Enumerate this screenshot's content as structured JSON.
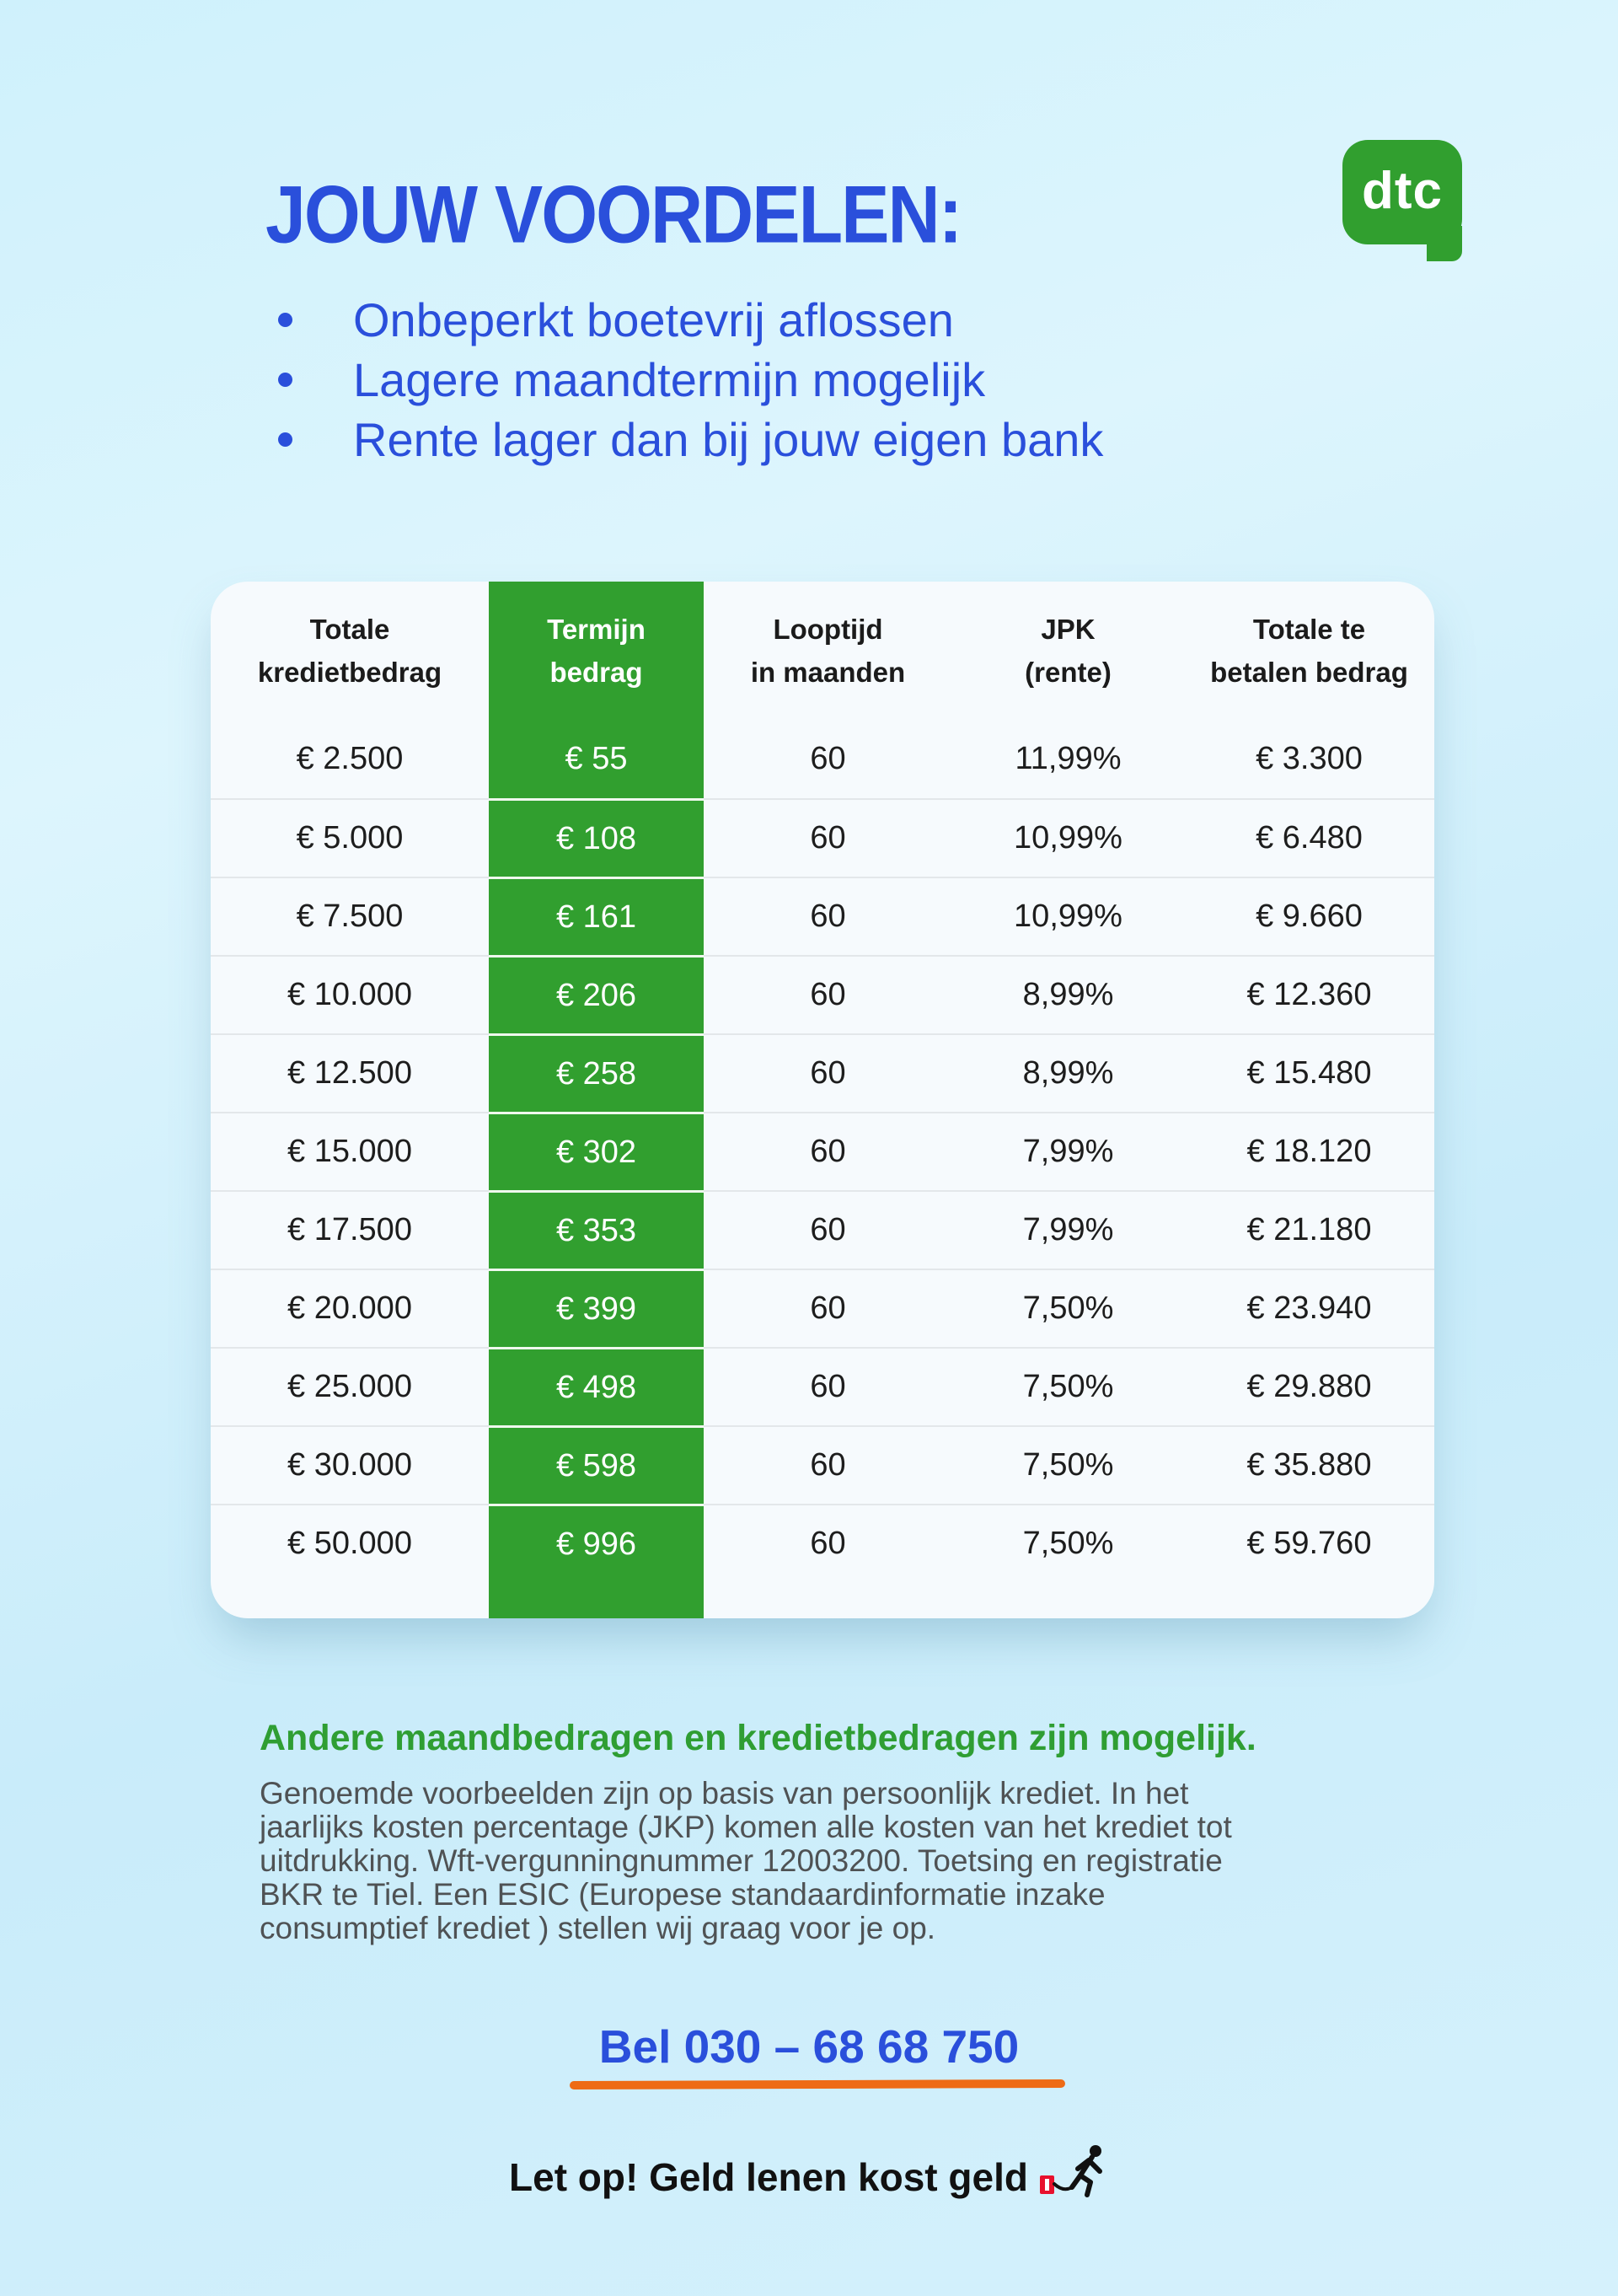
{
  "colors": {
    "accent_blue": "#2a4fdb",
    "brand_green": "#319f2f",
    "underline_orange": "#ee6b15",
    "warning_red": "#e8112d",
    "background_blue": "#cdeffb"
  },
  "header": {
    "title": "JOUW VOORDELEN:",
    "logo_text": "dtc",
    "bullets": [
      "Onbeperkt boetevrij aflossen",
      "Lagere maandtermijn mogelijk",
      "Rente lager dan bij jouw eigen bank"
    ]
  },
  "table": {
    "highlight_column_index": 1,
    "columns": [
      "Totale\nkredietbedrag",
      "Termijn\nbedrag",
      "Looptijd\nin maanden",
      "JPK\n(rente)",
      "Totale te\nbetalen bedrag"
    ],
    "rows": [
      [
        "€ 2.500",
        "€ 55",
        "60",
        "11,99%",
        "€ 3.300"
      ],
      [
        "€ 5.000",
        "€ 108",
        "60",
        "10,99%",
        "€ 6.480"
      ],
      [
        "€ 7.500",
        "€ 161",
        "60",
        "10,99%",
        "€ 9.660"
      ],
      [
        "€ 10.000",
        "€ 206",
        "60",
        "8,99%",
        "€ 12.360"
      ],
      [
        "€ 12.500",
        "€ 258",
        "60",
        "8,99%",
        "€ 15.480"
      ],
      [
        "€ 15.000",
        "€ 302",
        "60",
        "7,99%",
        "€ 18.120"
      ],
      [
        "€ 17.500",
        "€ 353",
        "60",
        "7,99%",
        "€ 21.180"
      ],
      [
        "€ 20.000",
        "€ 399",
        "60",
        "7,50%",
        "€ 23.940"
      ],
      [
        "€ 25.000",
        "€ 498",
        "60",
        "7,50%",
        "€ 29.880"
      ],
      [
        "€ 30.000",
        "€ 598",
        "60",
        "7,50%",
        "€ 35.880"
      ],
      [
        "€ 50.000",
        "€ 996",
        "60",
        "7,50%",
        "€ 59.760"
      ]
    ]
  },
  "footer": {
    "subheading": "Andere maandbedragen en kredietbedragen zijn mogelijk.",
    "legal_text": "Genoemde voorbeelden zijn op basis van persoonlijk krediet. In het\njaarlijks kosten percentage (JKP) komen alle kosten van het krediet tot\nuitdrukking. Wft-vergunningnummer 12003200. Toetsing en registratie\nBKR te Tiel. Een ESIC (Europese standaardinformatie inzake\nconsumptief krediet ) stellen wij graag voor je op.",
    "phone_label": "Bel 030 – 68 68 750",
    "warning_text": "Let op! Geld lenen kost geld"
  }
}
